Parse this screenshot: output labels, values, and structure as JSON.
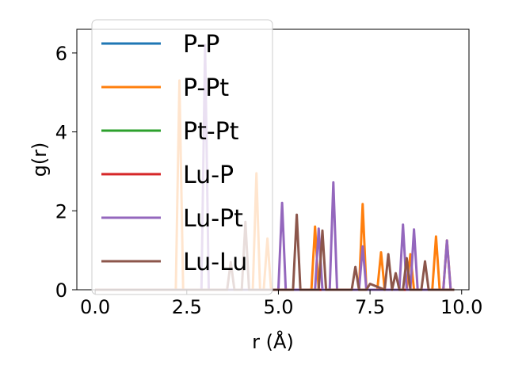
{
  "chart_data": {
    "type": "line",
    "xlabel": "r (Å)",
    "ylabel": "g(r)",
    "xlim": [
      -0.5,
      10.2
    ],
    "ylim": [
      0,
      6.6
    ],
    "xticks": [
      0.0,
      2.5,
      5.0,
      7.5,
      10.0
    ],
    "xtick_labels": [
      "0.0",
      "2.5",
      "5.0",
      "7.5",
      "10.0"
    ],
    "yticks": [
      0,
      2,
      4,
      6
    ],
    "ytick_labels": [
      "0",
      "2",
      "4",
      "6"
    ],
    "grid": false,
    "legend_position": "top-left",
    "series": [
      {
        "name": "P-P",
        "color": "#1f77b4",
        "x": [
          0.0,
          9.8
        ],
        "y": [
          0.0,
          0.0
        ]
      },
      {
        "name": "P-Pt",
        "color": "#ff7f0e",
        "x": [
          0.0,
          2.2,
          2.3,
          2.4,
          4.3,
          4.4,
          4.5,
          4.6,
          4.7,
          4.8,
          5.9,
          6.0,
          6.1,
          6.2,
          7.2,
          7.3,
          7.4,
          7.7,
          7.8,
          7.9,
          8.5,
          8.6,
          8.7,
          9.2,
          9.3,
          9.4,
          9.5,
          9.6,
          9.7,
          9.8
        ],
        "y": [
          0.0,
          0.0,
          5.3,
          0.0,
          0.0,
          2.95,
          0.0,
          0.0,
          1.3,
          0.0,
          0.0,
          1.6,
          0.0,
          0.0,
          0.0,
          2.17,
          0.0,
          0.0,
          0.95,
          0.0,
          0.0,
          0.9,
          0.0,
          0.0,
          1.35,
          0.0,
          0.0,
          1.25,
          0.0,
          0.0
        ]
      },
      {
        "name": "Pt-Pt",
        "color": "#2ca02c",
        "x": [
          0.0,
          9.8
        ],
        "y": [
          0.0,
          0.0
        ]
      },
      {
        "name": "Lu-P",
        "color": "#d62728",
        "x": [
          0.0,
          9.8
        ],
        "y": [
          0.0,
          0.0
        ]
      },
      {
        "name": "Lu-Pt",
        "color": "#9467bd",
        "x": [
          0.0,
          2.9,
          3.0,
          3.1,
          5.0,
          5.1,
          5.2,
          6.0,
          6.1,
          6.2,
          6.4,
          6.5,
          6.6,
          7.2,
          7.3,
          7.4,
          8.3,
          8.4,
          8.5,
          8.6,
          8.7,
          8.8,
          9.5,
          9.6,
          9.7,
          9.8
        ],
        "y": [
          0.0,
          0.0,
          6.2,
          0.0,
          0.0,
          2.2,
          0.0,
          0.0,
          1.55,
          0.0,
          0.0,
          2.72,
          0.0,
          0.0,
          1.1,
          0.0,
          0.0,
          1.65,
          0.0,
          0.0,
          1.53,
          0.0,
          0.0,
          1.25,
          0.0,
          0.0
        ]
      },
      {
        "name": "Lu-Lu",
        "color": "#8c564b",
        "x": [
          0.0,
          3.6,
          3.7,
          3.8,
          4.0,
          4.1,
          4.2,
          5.4,
          5.5,
          5.6,
          6.1,
          6.2,
          6.3,
          7.0,
          7.1,
          7.2,
          7.4,
          7.5,
          7.9,
          8.0,
          8.1,
          8.2,
          8.3,
          8.4,
          8.5,
          8.6,
          8.7,
          8.9,
          9.0,
          9.1,
          9.8
        ],
        "y": [
          0.0,
          0.0,
          0.7,
          0.0,
          0.0,
          1.72,
          0.0,
          0.0,
          1.9,
          0.0,
          0.0,
          1.5,
          0.0,
          0.0,
          0.58,
          0.0,
          0.0,
          0.15,
          0.0,
          0.9,
          0.0,
          0.42,
          0.0,
          0.0,
          0.8,
          0.0,
          0.0,
          0.0,
          0.72,
          0.0,
          0.0
        ]
      }
    ]
  }
}
